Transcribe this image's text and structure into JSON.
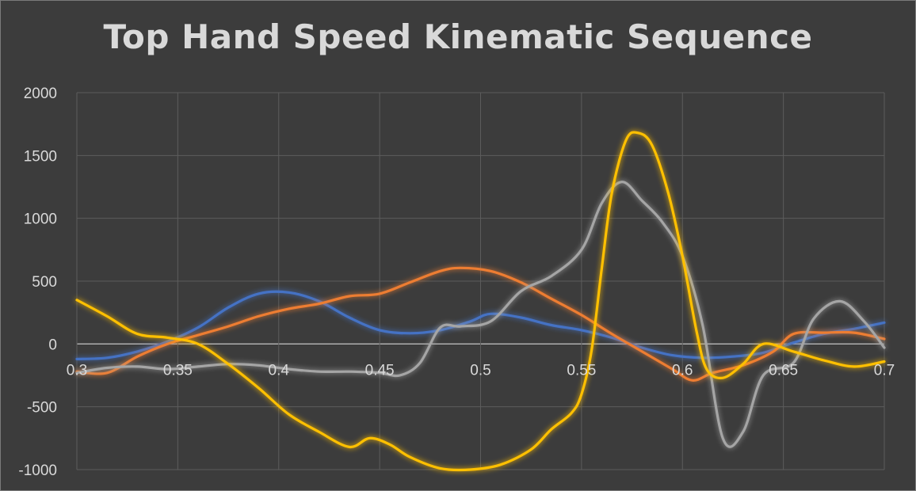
{
  "chart_data": {
    "type": "line",
    "title": "Top Hand Speed Kinematic Sequence",
    "xlabel": "",
    "ylabel": "",
    "xlim": [
      0.3,
      0.7
    ],
    "ylim": [
      -1000,
      2000
    ],
    "x_ticks": [
      "0.3",
      "0.35",
      "0.4",
      "0.45",
      "0.5",
      "0.55",
      "0.6",
      "0.65",
      "0.7"
    ],
    "y_ticks": [
      "2000",
      "1500",
      "1000",
      "500",
      "0",
      "-500",
      "-1000"
    ],
    "grid": true,
    "legend": "none",
    "series": [
      {
        "color": "#4472c4",
        "points": [
          [
            0.3,
            -120
          ],
          [
            0.315,
            -110
          ],
          [
            0.33,
            -60
          ],
          [
            0.345,
            20
          ],
          [
            0.36,
            130
          ],
          [
            0.375,
            290
          ],
          [
            0.39,
            400
          ],
          [
            0.405,
            410
          ],
          [
            0.42,
            340
          ],
          [
            0.435,
            210
          ],
          [
            0.45,
            110
          ],
          [
            0.465,
            85
          ],
          [
            0.48,
            110
          ],
          [
            0.495,
            180
          ],
          [
            0.505,
            240
          ],
          [
            0.52,
            210
          ],
          [
            0.535,
            150
          ],
          [
            0.55,
            110
          ],
          [
            0.565,
            50
          ],
          [
            0.58,
            -30
          ],
          [
            0.595,
            -90
          ],
          [
            0.61,
            -110
          ],
          [
            0.625,
            -100
          ],
          [
            0.64,
            -70
          ],
          [
            0.655,
            10
          ],
          [
            0.67,
            80
          ],
          [
            0.685,
            120
          ],
          [
            0.7,
            170
          ]
        ]
      },
      {
        "color": "#ed7d31",
        "points": [
          [
            0.3,
            -220
          ],
          [
            0.315,
            -230
          ],
          [
            0.33,
            -100
          ],
          [
            0.345,
            0
          ],
          [
            0.36,
            70
          ],
          [
            0.375,
            140
          ],
          [
            0.39,
            220
          ],
          [
            0.405,
            280
          ],
          [
            0.42,
            320
          ],
          [
            0.435,
            380
          ],
          [
            0.45,
            400
          ],
          [
            0.465,
            490
          ],
          [
            0.48,
            580
          ],
          [
            0.49,
            605
          ],
          [
            0.505,
            580
          ],
          [
            0.52,
            490
          ],
          [
            0.535,
            360
          ],
          [
            0.55,
            230
          ],
          [
            0.565,
            80
          ],
          [
            0.58,
            -60
          ],
          [
            0.595,
            -200
          ],
          [
            0.605,
            -290
          ],
          [
            0.615,
            -230
          ],
          [
            0.63,
            -170
          ],
          [
            0.645,
            -60
          ],
          [
            0.655,
            80
          ],
          [
            0.67,
            90
          ],
          [
            0.685,
            90
          ],
          [
            0.7,
            40
          ]
        ]
      },
      {
        "color": "#a5a5a5",
        "points": [
          [
            0.3,
            -230
          ],
          [
            0.315,
            -190
          ],
          [
            0.33,
            -180
          ],
          [
            0.345,
            -200
          ],
          [
            0.36,
            -180
          ],
          [
            0.375,
            -160
          ],
          [
            0.39,
            -170
          ],
          [
            0.405,
            -200
          ],
          [
            0.42,
            -220
          ],
          [
            0.435,
            -220
          ],
          [
            0.45,
            -230
          ],
          [
            0.46,
            -250
          ],
          [
            0.47,
            -150
          ],
          [
            0.48,
            130
          ],
          [
            0.49,
            140
          ],
          [
            0.505,
            180
          ],
          [
            0.52,
            420
          ],
          [
            0.535,
            540
          ],
          [
            0.55,
            750
          ],
          [
            0.56,
            1120
          ],
          [
            0.57,
            1290
          ],
          [
            0.58,
            1140
          ],
          [
            0.59,
            970
          ],
          [
            0.6,
            700
          ],
          [
            0.61,
            150
          ],
          [
            0.62,
            -750
          ],
          [
            0.63,
            -700
          ],
          [
            0.64,
            -250
          ],
          [
            0.655,
            -150
          ],
          [
            0.665,
            200
          ],
          [
            0.678,
            340
          ],
          [
            0.69,
            180
          ],
          [
            0.7,
            -30
          ]
        ]
      },
      {
        "color": "#ffc000",
        "points": [
          [
            0.3,
            350
          ],
          [
            0.315,
            220
          ],
          [
            0.33,
            80
          ],
          [
            0.345,
            50
          ],
          [
            0.36,
            0
          ],
          [
            0.375,
            -160
          ],
          [
            0.39,
            -350
          ],
          [
            0.405,
            -560
          ],
          [
            0.42,
            -700
          ],
          [
            0.435,
            -820
          ],
          [
            0.445,
            -750
          ],
          [
            0.455,
            -800
          ],
          [
            0.465,
            -900
          ],
          [
            0.48,
            -990
          ],
          [
            0.495,
            -1000
          ],
          [
            0.51,
            -960
          ],
          [
            0.525,
            -840
          ],
          [
            0.535,
            -680
          ],
          [
            0.545,
            -550
          ],
          [
            0.55,
            -400
          ],
          [
            0.555,
            -50
          ],
          [
            0.56,
            600
          ],
          [
            0.565,
            1200
          ],
          [
            0.572,
            1620
          ],
          [
            0.578,
            1680
          ],
          [
            0.585,
            1580
          ],
          [
            0.593,
            1200
          ],
          [
            0.6,
            700
          ],
          [
            0.607,
            100
          ],
          [
            0.612,
            -200
          ],
          [
            0.62,
            -270
          ],
          [
            0.63,
            -160
          ],
          [
            0.64,
            0
          ],
          [
            0.655,
            -60
          ],
          [
            0.67,
            -130
          ],
          [
            0.685,
            -180
          ],
          [
            0.7,
            -140
          ]
        ]
      }
    ]
  }
}
